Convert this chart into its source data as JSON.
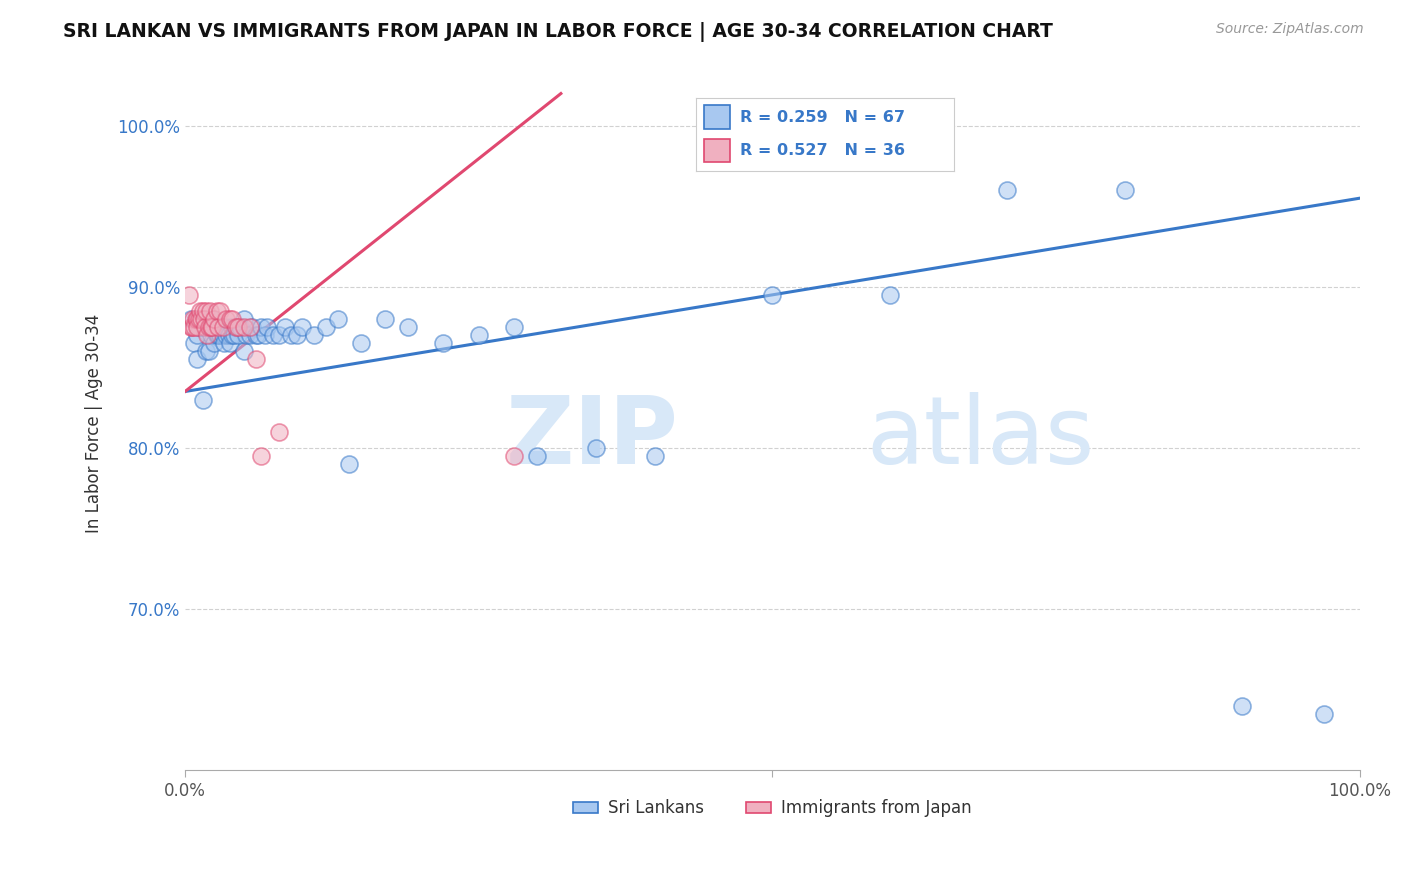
{
  "title": "SRI LANKAN VS IMMIGRANTS FROM JAPAN IN LABOR FORCE | AGE 30-34 CORRELATION CHART",
  "source": "Source: ZipAtlas.com",
  "ylabel": "In Labor Force | Age 30-34",
  "xlim": [
    0.0,
    1.0
  ],
  "ylim": [
    0.6,
    1.03
  ],
  "ytick_values": [
    0.7,
    0.8,
    0.9,
    1.0
  ],
  "ytick_labels": [
    "70.0%",
    "80.0%",
    "90.0%",
    "100.0%"
  ],
  "blue_R": 0.259,
  "blue_N": 67,
  "pink_R": 0.527,
  "pink_N": 36,
  "blue_color": "#a8c8f0",
  "pink_color": "#f0b0c0",
  "blue_line_color": "#3878c8",
  "pink_line_color": "#e04870",
  "legend_text_color": "#3878c8",
  "watermark_color": "#d8e8f8",
  "sri_lankans_x": [
    0.005,
    0.008,
    0.01,
    0.01,
    0.012,
    0.015,
    0.015,
    0.017,
    0.018,
    0.02,
    0.02,
    0.022,
    0.023,
    0.025,
    0.025,
    0.026,
    0.027,
    0.028,
    0.03,
    0.03,
    0.032,
    0.033,
    0.035,
    0.035,
    0.037,
    0.038,
    0.04,
    0.04,
    0.042,
    0.043,
    0.045,
    0.047,
    0.05,
    0.05,
    0.052,
    0.055,
    0.057,
    0.06,
    0.062,
    0.065,
    0.068,
    0.07,
    0.075,
    0.08,
    0.085,
    0.09,
    0.095,
    0.1,
    0.11,
    0.12,
    0.13,
    0.14,
    0.15,
    0.17,
    0.19,
    0.22,
    0.25,
    0.28,
    0.3,
    0.35,
    0.4,
    0.5,
    0.6,
    0.7,
    0.8,
    0.9,
    0.97
  ],
  "sri_lankans_y": [
    0.88,
    0.865,
    0.855,
    0.87,
    0.875,
    0.83,
    0.875,
    0.88,
    0.86,
    0.86,
    0.875,
    0.87,
    0.88,
    0.865,
    0.875,
    0.875,
    0.87,
    0.87,
    0.87,
    0.875,
    0.87,
    0.865,
    0.875,
    0.87,
    0.87,
    0.865,
    0.875,
    0.87,
    0.87,
    0.875,
    0.87,
    0.875,
    0.86,
    0.88,
    0.87,
    0.87,
    0.875,
    0.87,
    0.87,
    0.875,
    0.87,
    0.875,
    0.87,
    0.87,
    0.875,
    0.87,
    0.87,
    0.875,
    0.87,
    0.875,
    0.88,
    0.79,
    0.865,
    0.88,
    0.875,
    0.865,
    0.87,
    0.875,
    0.795,
    0.8,
    0.795,
    0.895,
    0.895,
    0.96,
    0.96,
    0.64,
    0.635
  ],
  "japan_x": [
    0.003,
    0.005,
    0.006,
    0.007,
    0.008,
    0.009,
    0.01,
    0.01,
    0.012,
    0.013,
    0.014,
    0.015,
    0.016,
    0.017,
    0.018,
    0.019,
    0.02,
    0.021,
    0.022,
    0.023,
    0.025,
    0.027,
    0.028,
    0.03,
    0.032,
    0.035,
    0.038,
    0.04,
    0.043,
    0.045,
    0.05,
    0.055,
    0.06,
    0.065,
    0.08,
    0.28
  ],
  "japan_y": [
    0.895,
    0.875,
    0.875,
    0.88,
    0.875,
    0.88,
    0.88,
    0.875,
    0.88,
    0.885,
    0.88,
    0.885,
    0.88,
    0.875,
    0.885,
    0.87,
    0.875,
    0.885,
    0.875,
    0.875,
    0.88,
    0.885,
    0.875,
    0.885,
    0.875,
    0.88,
    0.88,
    0.88,
    0.875,
    0.875,
    0.875,
    0.875,
    0.855,
    0.795,
    0.81,
    0.795
  ],
  "blue_trend_x": [
    0.0,
    1.0
  ],
  "blue_trend_y0": 0.835,
  "blue_trend_y1": 0.955,
  "pink_trend_x0": 0.0,
  "pink_trend_x1": 0.32,
  "pink_trend_y0": 0.835,
  "pink_trend_y1": 1.02
}
